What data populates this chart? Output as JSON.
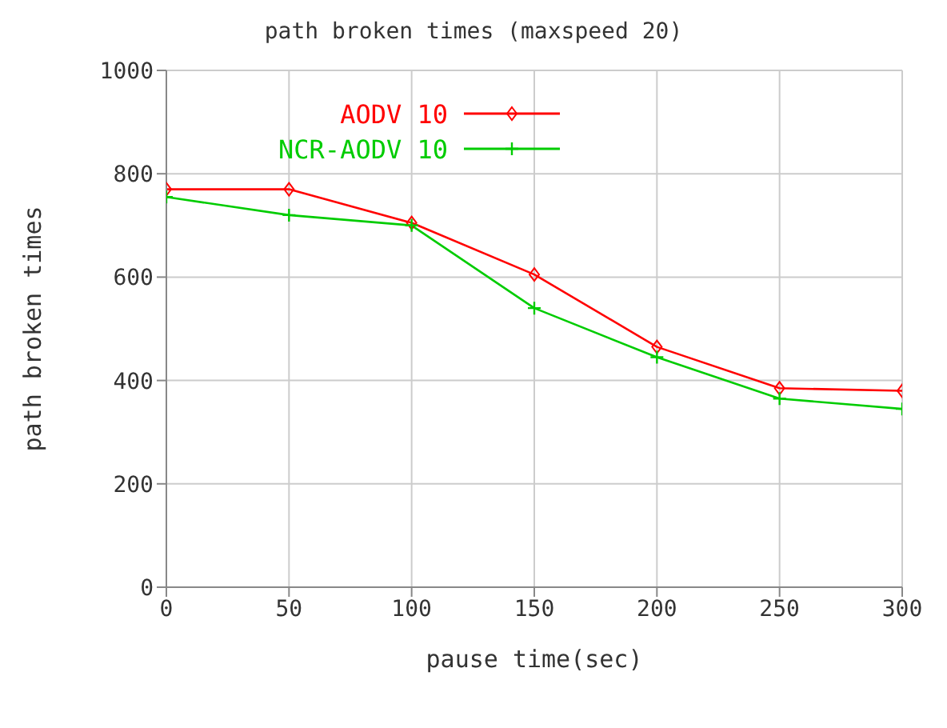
{
  "chart_data": {
    "type": "line",
    "title": "path broken times (maxspeed 20)",
    "xlabel": "pause time(sec)",
    "ylabel": "path broken times",
    "x": [
      0,
      50,
      100,
      150,
      200,
      250,
      300
    ],
    "series": [
      {
        "name": "AODV 10",
        "color": "#ff0000",
        "marker": "diamond",
        "values": [
          770,
          770,
          705,
          605,
          465,
          385,
          380
        ]
      },
      {
        "name": "NCR-AODV 10",
        "color": "#00cc00",
        "marker": "cross",
        "values": [
          755,
          720,
          700,
          540,
          445,
          365,
          345
        ]
      }
    ],
    "xlim": [
      0,
      300
    ],
    "xticks": [
      0,
      50,
      100,
      150,
      200,
      250,
      300
    ],
    "ylim": [
      0,
      1000
    ],
    "yticks": [
      0,
      200,
      400,
      600,
      800,
      1000
    ],
    "grid": true,
    "legend": "top left"
  }
}
